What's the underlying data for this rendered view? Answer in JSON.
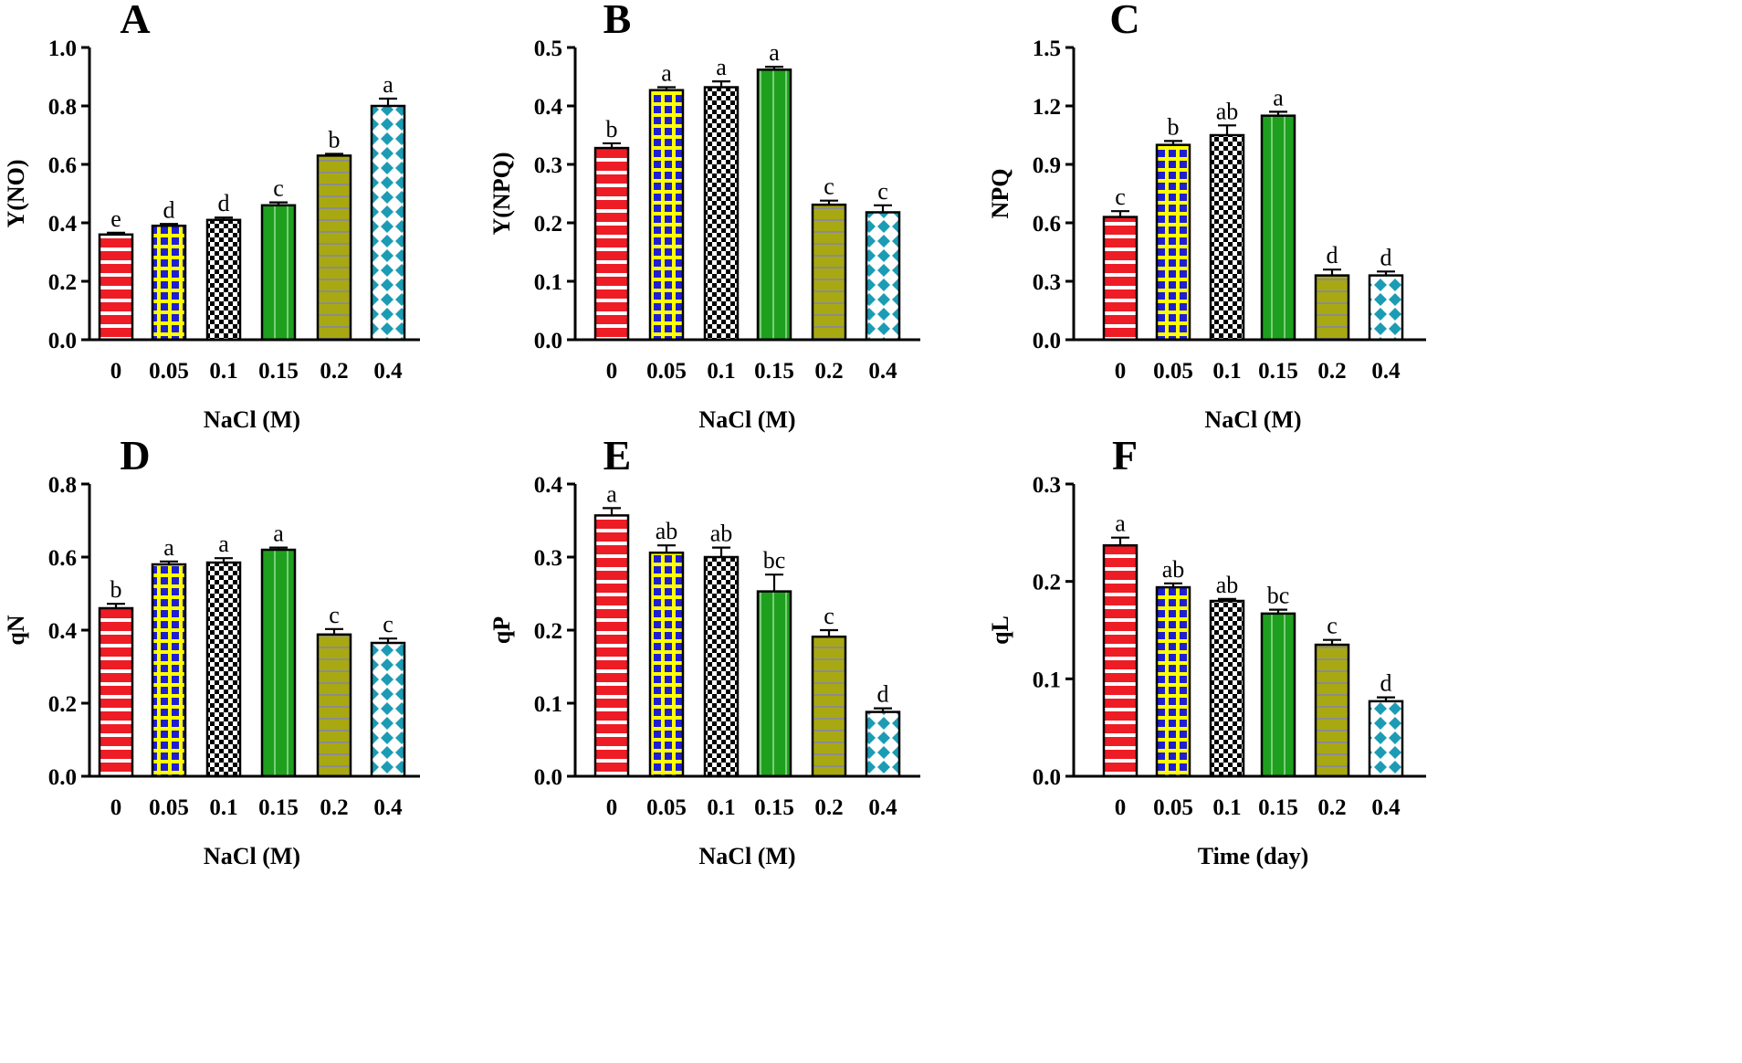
{
  "figure": {
    "colors": {
      "bar_fills": [
        "#ee1c25",
        "#1f1fd0",
        "#ffffff",
        "#1ea01e",
        "#a8a812",
        "#ffffff"
      ],
      "pattern_inks": [
        "#ffffff",
        "#ffff00",
        "#000000",
        "#7ccd7c",
        "#8c8c8c",
        "#1c9cb4"
      ],
      "axis": "#000000"
    }
  },
  "chart_data": [
    {
      "type": "bar",
      "panel": "A",
      "categories": [
        "0",
        "0.05",
        "0.1",
        "0.15",
        "0.2",
        "0.4"
      ],
      "values": [
        0.36,
        0.39,
        0.41,
        0.46,
        0.63,
        0.8
      ],
      "errors": [
        0.006,
        0.006,
        0.008,
        0.01,
        0.006,
        0.025
      ],
      "letters": [
        "e",
        "d",
        "d",
        "c",
        "b",
        "a"
      ],
      "xlabel": "NaCl (M)",
      "ylabel": "Y(NO)",
      "ylim": [
        0,
        1.0
      ],
      "yticks": [
        "0.0",
        "0.2",
        "0.4",
        "0.6",
        "0.8",
        "1.0"
      ]
    },
    {
      "type": "bar",
      "panel": "B",
      "categories": [
        "0",
        "0.05",
        "0.1",
        "0.15",
        "0.2",
        "0.4"
      ],
      "values": [
        0.328,
        0.427,
        0.432,
        0.462,
        0.231,
        0.218
      ],
      "errors": [
        0.008,
        0.005,
        0.01,
        0.005,
        0.007,
        0.012
      ],
      "letters": [
        "b",
        "a",
        "a",
        "a",
        "c",
        "c"
      ],
      "xlabel": "NaCl (M)",
      "ylabel": "Y(NPQ)",
      "ylim": [
        0,
        0.5
      ],
      "yticks": [
        "0.0",
        "0.1",
        "0.2",
        "0.3",
        "0.4",
        "0.5"
      ]
    },
    {
      "type": "bar",
      "panel": "C",
      "categories": [
        "0",
        "0.05",
        "0.1",
        "0.15",
        "0.2",
        "0.4"
      ],
      "values": [
        0.63,
        1.0,
        1.05,
        1.15,
        0.33,
        0.33
      ],
      "errors": [
        0.03,
        0.02,
        0.05,
        0.02,
        0.03,
        0.02
      ],
      "letters": [
        "c",
        "b",
        "ab",
        "a",
        "d",
        "d"
      ],
      "xlabel": "NaCl (M)",
      "ylabel": "NPQ",
      "ylim": [
        0,
        1.5
      ],
      "yticks": [
        "0.0",
        "0.3",
        "0.6",
        "0.9",
        "1.2",
        "1.5"
      ]
    },
    {
      "type": "bar",
      "panel": "D",
      "categories": [
        "0",
        "0.05",
        "0.1",
        "0.15",
        "0.2",
        "0.4"
      ],
      "values": [
        0.46,
        0.58,
        0.585,
        0.62,
        0.388,
        0.365
      ],
      "errors": [
        0.012,
        0.008,
        0.012,
        0.006,
        0.015,
        0.012
      ],
      "letters": [
        "b",
        "a",
        "a",
        "a",
        "c",
        "c"
      ],
      "xlabel": "NaCl (M)",
      "ylabel": "qN",
      "ylim": [
        0,
        0.8
      ],
      "yticks": [
        "0.0",
        "0.2",
        "0.4",
        "0.6",
        "0.8"
      ]
    },
    {
      "type": "bar",
      "panel": "E",
      "categories": [
        "0",
        "0.05",
        "0.1",
        "0.15",
        "0.2",
        "0.4"
      ],
      "values": [
        0.357,
        0.306,
        0.3,
        0.253,
        0.191,
        0.088
      ],
      "errors": [
        0.01,
        0.01,
        0.013,
        0.023,
        0.009,
        0.005
      ],
      "letters": [
        "a",
        "ab",
        "ab",
        "bc",
        "c",
        "d"
      ],
      "xlabel": "NaCl (M)",
      "ylabel": "qP",
      "ylim": [
        0,
        0.4
      ],
      "yticks": [
        "0.0",
        "0.1",
        "0.2",
        "0.3",
        "0.4"
      ]
    },
    {
      "type": "bar",
      "panel": "F",
      "categories": [
        "0",
        "0.05",
        "0.1",
        "0.15",
        "0.2",
        "0.4"
      ],
      "values": [
        0.237,
        0.194,
        0.18,
        0.167,
        0.135,
        0.077
      ],
      "errors": [
        0.008,
        0.004,
        0.002,
        0.004,
        0.005,
        0.004
      ],
      "letters": [
        "a",
        "ab",
        "ab",
        "bc",
        "c",
        "d"
      ],
      "xlabel": "Time (day)",
      "ylabel": "qL",
      "ylim": [
        0,
        0.3
      ],
      "yticks": [
        "0.0",
        "0.1",
        "0.2",
        "0.3"
      ]
    }
  ]
}
